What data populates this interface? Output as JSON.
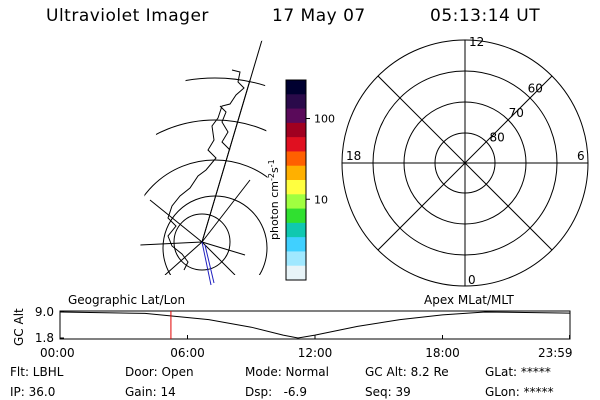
{
  "header": {
    "instrument": "Ultraviolet Imager",
    "date": "17 May 07",
    "time": "05:13:14 UT"
  },
  "colorbar": {
    "label": "photon cm",
    "label_sup1": "-2",
    "label_mid": "s",
    "label_sup2": "-1",
    "ticks": [
      {
        "label": "100",
        "value": 100
      },
      {
        "label": "10",
        "value": 10
      }
    ],
    "colors": [
      "#000030",
      "#2a0a4a",
      "#5a0a5a",
      "#a00020",
      "#e01020",
      "#ff6000",
      "#ffb000",
      "#ffff40",
      "#a0ff40",
      "#30e030",
      "#10c8b0",
      "#40d0ff",
      "#a0e8ff",
      "#e8f4f8"
    ]
  },
  "polar": {
    "mlt_labels": [
      {
        "label": "12",
        "mlt": 12
      },
      {
        "label": "18",
        "mlt": 18
      },
      {
        "label": "6",
        "mlt": 6
      },
      {
        "label": "0",
        "mlt": 0
      }
    ],
    "lat_labels": [
      {
        "label": "60",
        "lat": 60
      },
      {
        "label": "70",
        "lat": 70
      },
      {
        "label": "80",
        "lat": 80
      }
    ]
  },
  "timeline": {
    "left_label": "Geographic Lat/Lon",
    "right_label": "Apex MLat/MLT",
    "y_axis_label": "GC Alt",
    "y_ticks": [
      {
        "label": "9.0",
        "value": 9.0
      },
      {
        "label": "1.8",
        "value": 1.8
      }
    ],
    "x_ticks": [
      {
        "label": "00:00",
        "hour": 0
      },
      {
        "label": "06:00",
        "hour": 6
      },
      {
        "label": "12:00",
        "hour": 12
      },
      {
        "label": "18:00",
        "hour": 18
      },
      {
        "label": "23:59",
        "hour": 23.98
      }
    ],
    "current_time_hour": 5.22,
    "altitude_curve": [
      {
        "hour": 0,
        "alt": 9.0
      },
      {
        "hour": 4,
        "alt": 8.6
      },
      {
        "hour": 7,
        "alt": 6.9
      },
      {
        "hour": 9,
        "alt": 4.8
      },
      {
        "hour": 10.5,
        "alt": 2.6
      },
      {
        "hour": 11.2,
        "alt": 1.8
      },
      {
        "hour": 12,
        "alt": 2.6
      },
      {
        "hour": 14,
        "alt": 5.0
      },
      {
        "hour": 16,
        "alt": 6.9
      },
      {
        "hour": 18,
        "alt": 8.2
      },
      {
        "hour": 20,
        "alt": 9.0
      },
      {
        "hour": 23.98,
        "alt": 8.7
      }
    ]
  },
  "status": {
    "flt": "Flt: LBHL",
    "ip": "IP: 36.0",
    "door": "Door: Open",
    "gain": "Gain: 14",
    "mode": "Mode: Normal",
    "dsp": "Dsp:   -6.9",
    "gcalt": "GC Alt: 8.2 Re",
    "seq": "Seq: 39",
    "glat": "GLat: *****",
    "glon": "GLon: *****"
  }
}
